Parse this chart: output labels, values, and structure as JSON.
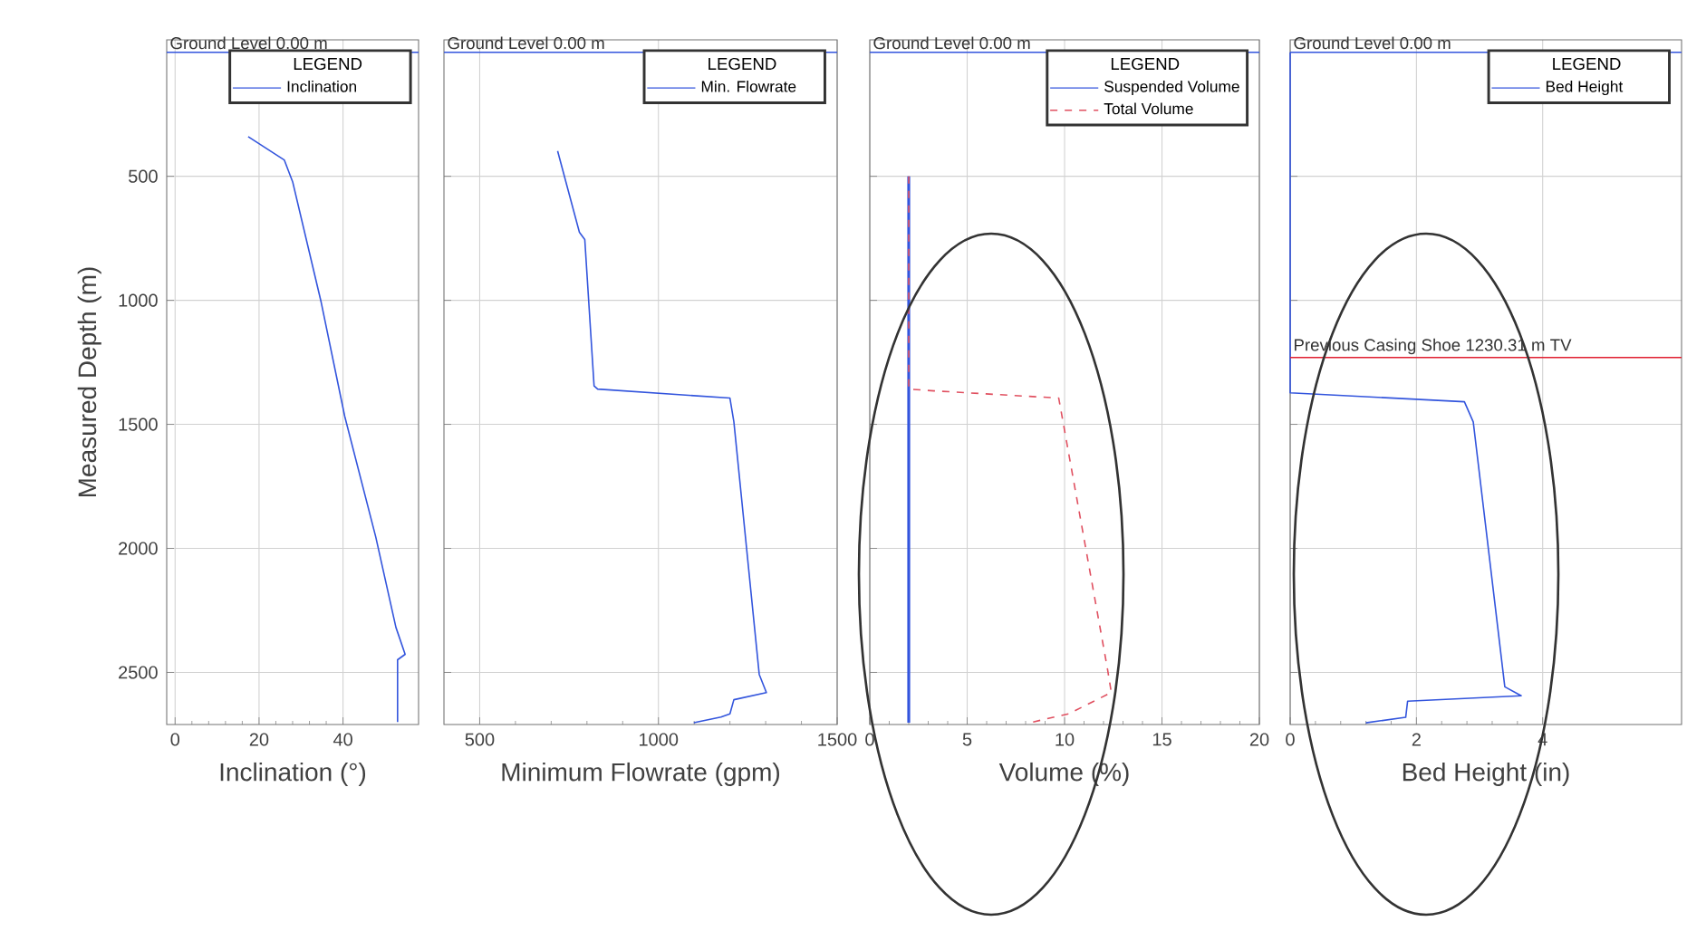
{
  "chart_data": [
    {
      "type": "line",
      "xlabel": "Inclination (°)",
      "ylabel": "Measured Depth (m)",
      "xlim": [
        -2,
        58
      ],
      "xticks": [
        0,
        20,
        40
      ],
      "ylim": [
        2710,
        -50
      ],
      "yticks": [
        500,
        1000,
        1500,
        2000,
        2500
      ],
      "grid": true,
      "legend": "top right",
      "legend_title": "LEGEND",
      "series": [
        {
          "name": "Inclination",
          "color": "#3355dd",
          "line_style": "solid",
          "x": [
            17.4,
            26,
            28,
            34.8,
            40.4,
            47.8,
            52.6,
            54.8,
            53,
            53
          ],
          "values": [
            340,
            434,
            522,
            1008,
            1467,
            1954,
            2318,
            2427,
            2449,
            2700
          ]
        }
      ],
      "ref_lines": [
        {
          "axis": "y",
          "value": 0,
          "label": "Ground Level 0.00 m",
          "color": "#3355dd"
        }
      ]
    },
    {
      "type": "line",
      "xlabel": "Minimum Flowrate (gpm)",
      "xlim": [
        400,
        1500
      ],
      "xticks": [
        500,
        1000,
        1500
      ],
      "ylim": [
        2710,
        -50
      ],
      "yticks": [
        500,
        1000,
        1500,
        2000,
        2500
      ],
      "tick_labels": "x",
      "grid": true,
      "legend": "top right",
      "legend_title": "LEGEND",
      "series": [
        {
          "name": "Min. Flowrate",
          "color": "#3355dd",
          "line_style": "solid",
          "x": [
            718,
            779,
            794,
            820,
            830,
            1200,
            1211,
            1282,
            1302,
            1211,
            1200,
            1175,
            1099
          ],
          "values": [
            398,
            726,
            755,
            1345,
            1358,
            1394,
            1489,
            2508,
            2581,
            2610,
            2667,
            2680,
            2703
          ]
        }
      ],
      "ref_lines": [
        {
          "axis": "y",
          "value": 0,
          "label": "Ground Level 0.00 m",
          "color": "#3355dd"
        }
      ]
    },
    {
      "type": "line",
      "xlabel": "Volume (%)",
      "xlim": [
        0,
        20
      ],
      "xticks": [
        0,
        5,
        10,
        15,
        20
      ],
      "ylim": [
        2710,
        -50
      ],
      "yticks": [
        500,
        1000,
        1500,
        2000,
        2500
      ],
      "tick_labels": "x",
      "grid": true,
      "legend": "top right",
      "legend_title": "LEGEND",
      "series": [
        {
          "name": "Suspended Volume",
          "color": "#3355dd",
          "line_style": "solid",
          "x": [
            2.0,
            2.0
          ],
          "values": [
            500,
            2703
          ]
        },
        {
          "name": "Total Volume",
          "color": "#e05060",
          "line_style": "dashed",
          "x": [
            2.0,
            2.0,
            3.3,
            9.7,
            12.2,
            12.4,
            10.2,
            8.2
          ],
          "values": [
            500,
            1358,
            1365,
            1394,
            2485,
            2581,
            2667,
            2703
          ]
        }
      ],
      "ref_lines": [
        {
          "axis": "y",
          "value": 0,
          "label": "Ground Level 0.00 m",
          "color": "#3355dd"
        }
      ]
    },
    {
      "type": "line",
      "xlabel": "Bed Height (in)",
      "xlim": [
        0,
        6.2
      ],
      "xticks": [
        0,
        2,
        4
      ],
      "ylim": [
        2710,
        -50
      ],
      "yticks": [
        500,
        1000,
        1500,
        2000,
        2500
      ],
      "tick_labels": "x",
      "grid": true,
      "legend": "top right",
      "legend_title": "LEGEND",
      "series": [
        {
          "name": "Bed Height",
          "color": "#3355dd",
          "line_style": "solid",
          "x": [
            0,
            0,
            2.76,
            2.9,
            3.4,
            3.66,
            1.86,
            1.83,
            1.2
          ],
          "values": [
            0,
            1373,
            1409,
            1490,
            2558,
            2594,
            2616,
            2681,
            2703
          ]
        }
      ],
      "ref_lines": [
        {
          "axis": "y",
          "value": 0,
          "label": "Ground Level 0.00 m",
          "color": "#3355dd"
        },
        {
          "axis": "y",
          "value": 1230.31,
          "label": "Previous Casing Shoe 1230.31 m TV",
          "color": "#e02030"
        }
      ]
    }
  ]
}
